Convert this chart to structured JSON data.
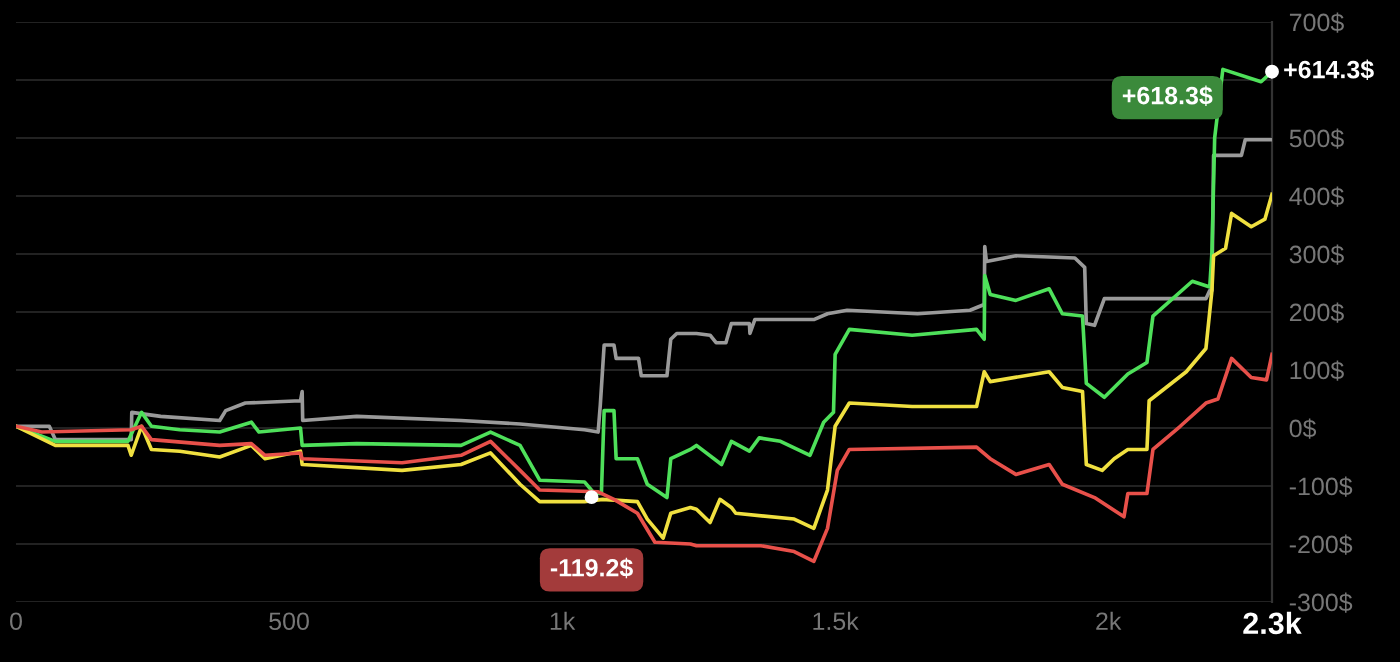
{
  "chart_data": {
    "type": "line",
    "xlim": [
      0,
      2300
    ],
    "ylim": [
      -300,
      700
    ],
    "xticks": [
      0,
      500,
      {
        "value": 1000,
        "label": "1k"
      },
      {
        "value": 1500,
        "label": "1.5k"
      },
      {
        "value": 2000,
        "label": "2k"
      },
      {
        "value": 2300,
        "label": "2.3k"
      }
    ],
    "yticks": [
      {
        "value": -300,
        "label": "-300$"
      },
      {
        "value": -200,
        "label": "-200$"
      },
      {
        "value": -100,
        "label": "-100$"
      },
      {
        "value": 0,
        "label": "0$"
      },
      {
        "value": 100,
        "label": "100$"
      },
      {
        "value": 200,
        "label": "200$"
      },
      {
        "value": 300,
        "label": "300$"
      },
      {
        "value": 400,
        "label": "400$"
      },
      {
        "value": 500,
        "label": "500$"
      },
      {
        "value": 600,
        "label": null
      },
      {
        "value": 700,
        "label": "700$"
      }
    ],
    "grid": "y",
    "series": [
      {
        "color": "#9a9a9a",
        "x": [
          0,
          61,
          72,
          211,
          212,
          265,
          373,
          384,
          420,
          521,
          524,
          525,
          624,
          815,
          923,
          1041,
          1066,
          1070,
          1077,
          1095,
          1099,
          1140,
          1145,
          1192,
          1199,
          1210,
          1246,
          1271,
          1282,
          1300,
          1310,
          1343,
          1344,
          1353,
          1461,
          1486,
          1522,
          1651,
          1747,
          1773,
          1774,
          1777,
          1831,
          1939,
          1957,
          1960,
          1975,
          1993,
          2179,
          2186,
          2190,
          2193,
          2244,
          2251,
          2300
        ],
        "values": [
          3,
          3,
          -20,
          -20,
          27,
          20,
          13,
          30,
          43,
          47,
          63,
          13,
          20,
          13,
          7,
          -3,
          -7,
          40,
          143,
          143,
          120,
          120,
          90,
          90,
          153,
          163,
          163,
          160,
          147,
          147,
          180,
          180,
          163,
          187,
          187,
          197,
          203,
          197,
          203,
          213,
          313,
          287,
          297,
          293,
          277,
          180,
          177,
          223,
          223,
          237,
          237,
          470,
          470,
          497,
          497
        ]
      },
      {
        "color": "#4ee05a",
        "x": [
          0,
          72,
          205,
          230,
          248,
          300,
          373,
          431,
          445,
          521,
          524,
          624,
          815,
          869,
          923,
          959,
          1041,
          1059,
          1072,
          1077,
          1095,
          1099,
          1138,
          1156,
          1192,
          1199,
          1235,
          1246,
          1292,
          1310,
          1343,
          1361,
          1400,
          1454,
          1479,
          1497,
          1500,
          1526,
          1641,
          1759,
          1773,
          1774,
          1784,
          1831,
          1892,
          1916,
          1953,
          1960,
          1993,
          2036,
          2071,
          2082,
          2154,
          2186,
          2190,
          2195,
          2210,
          2280,
          2300
        ],
        "values": [
          3,
          -23,
          -23,
          27,
          3,
          -3,
          -7,
          10,
          -7,
          0,
          -30,
          -27,
          -30,
          -7,
          -30,
          -90,
          -93,
          -113,
          -113,
          30,
          30,
          -53,
          -53,
          -97,
          -120,
          -53,
          -37,
          -30,
          -63,
          -23,
          -40,
          -17,
          -23,
          -47,
          10,
          27,
          127,
          170,
          160,
          170,
          153,
          263,
          230,
          220,
          240,
          197,
          193,
          77,
          53,
          93,
          113,
          193,
          253,
          243,
          303,
          500,
          618.3,
          597,
          614.3
        ]
      },
      {
        "color": "#f0e040",
        "x": [
          0,
          72,
          205,
          211,
          230,
          248,
          300,
          373,
          431,
          456,
          521,
          524,
          707,
          815,
          869,
          923,
          959,
          1041,
          1074,
          1138,
          1156,
          1185,
          1199,
          1235,
          1246,
          1271,
          1289,
          1310,
          1318,
          1425,
          1461,
          1486,
          1500,
          1526,
          1641,
          1759,
          1773,
          1784,
          1892,
          1916,
          1953,
          1960,
          1989,
          2011,
          2036,
          2071,
          2075,
          2143,
          2179,
          2190,
          2193,
          2215,
          2226,
          2262,
          2287,
          2300
        ],
        "values": [
          3,
          -30,
          -30,
          -47,
          3,
          -37,
          -40,
          -50,
          -30,
          -53,
          -40,
          -63,
          -73,
          -63,
          -43,
          -97,
          -127,
          -127,
          -123,
          -127,
          -157,
          -190,
          -147,
          -137,
          -140,
          -163,
          -123,
          -137,
          -147,
          -157,
          -173,
          -107,
          3,
          43,
          37,
          37,
          97,
          80,
          97,
          70,
          63,
          -63,
          -73,
          -53,
          -37,
          -37,
          47,
          97,
          137,
          237,
          297,
          310,
          370,
          347,
          360,
          403
        ]
      },
      {
        "color": "#e8504a",
        "x": [
          0,
          47,
          211,
          230,
          248,
          373,
          431,
          456,
          521,
          524,
          707,
          815,
          869,
          923,
          959,
          1066,
          1095,
          1138,
          1170,
          1235,
          1246,
          1364,
          1425,
          1461,
          1486,
          1504,
          1526,
          1759,
          1784,
          1831,
          1892,
          1916,
          1975,
          2029,
          2036,
          2071,
          2082,
          2132,
          2179,
          2201,
          2226,
          2262,
          2290,
          2300
        ],
        "values": [
          3,
          -7,
          -3,
          3,
          -20,
          -30,
          -27,
          -47,
          -43,
          -53,
          -60,
          -47,
          -23,
          -73,
          -107,
          -110,
          -123,
          -147,
          -197,
          -200,
          -203,
          -203,
          -213,
          -230,
          -173,
          -73,
          -37,
          -33,
          -53,
          -80,
          -63,
          -97,
          -120,
          -153,
          -113,
          -113,
          -37,
          3,
          43,
          50,
          120,
          87,
          83,
          127
        ]
      }
    ],
    "annotations": [
      {
        "text": "-119.2$",
        "x": 1054,
        "y": -119.2
      },
      {
        "text": "+618.3$",
        "x": 2210,
        "y": 618.3
      },
      {
        "text": "+614.3$",
        "x": 2300,
        "y": 614.3
      }
    ]
  }
}
